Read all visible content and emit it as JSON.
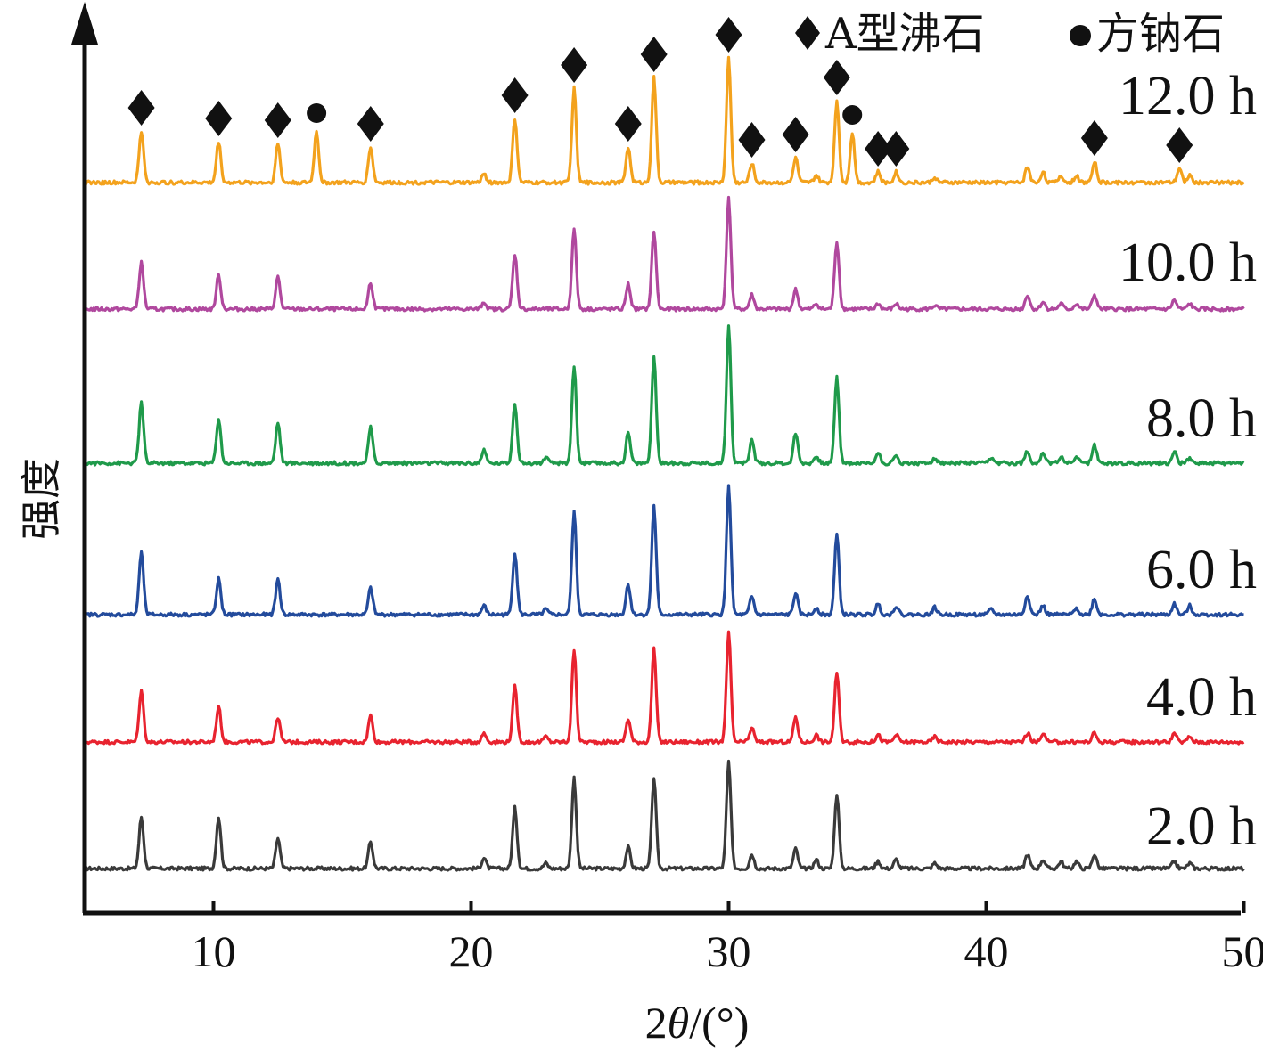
{
  "chart_data": {
    "type": "line",
    "title": "",
    "xlabel": "2θ/(°)",
    "ylabel": "强度",
    "xlim": [
      5,
      50
    ],
    "xticks": [
      10,
      20,
      30,
      40,
      50
    ],
    "grid": false,
    "legend": [
      {
        "marker": "diamond",
        "label": "A型沸石"
      },
      {
        "marker": "circle",
        "label": "方钠石"
      }
    ],
    "zeolite_a_peaks": [
      7.2,
      10.2,
      12.5,
      16.1,
      21.7,
      24.0,
      26.1,
      27.1,
      30.0,
      30.9,
      32.6,
      34.2,
      35.8,
      36.5,
      44.2,
      47.5
    ],
    "sodalite_peaks": [
      14.0,
      34.8
    ],
    "series": [
      {
        "name": "2.0 h",
        "label": "2.0 h",
        "color": "#3a3a3a",
        "peaks": [
          [
            7.2,
            58
          ],
          [
            10.2,
            58
          ],
          [
            12.5,
            34
          ],
          [
            16.1,
            30
          ],
          [
            20.5,
            12
          ],
          [
            21.7,
            68
          ],
          [
            22.9,
            6
          ],
          [
            24.0,
            102
          ],
          [
            26.1,
            24
          ],
          [
            27.1,
            102
          ],
          [
            30.0,
            120
          ],
          [
            30.9,
            16
          ],
          [
            32.6,
            22
          ],
          [
            33.4,
            10
          ],
          [
            34.2,
            84
          ],
          [
            35.8,
            8
          ],
          [
            36.5,
            10
          ],
          [
            38.0,
            6
          ],
          [
            41.6,
            16
          ],
          [
            42.2,
            10
          ],
          [
            42.9,
            8
          ],
          [
            43.5,
            8
          ],
          [
            44.2,
            16
          ],
          [
            47.3,
            8
          ],
          [
            47.9,
            6
          ]
        ]
      },
      {
        "name": "4.0 h",
        "label": "4.0 h",
        "color": "#e8232f",
        "peaks": [
          [
            7.2,
            58
          ],
          [
            10.2,
            40
          ],
          [
            12.5,
            28
          ],
          [
            16.1,
            30
          ],
          [
            20.5,
            10
          ],
          [
            21.7,
            62
          ],
          [
            22.9,
            6
          ],
          [
            24.0,
            104
          ],
          [
            26.1,
            26
          ],
          [
            27.1,
            104
          ],
          [
            30.0,
            124
          ],
          [
            30.9,
            16
          ],
          [
            32.6,
            28
          ],
          [
            33.4,
            8
          ],
          [
            34.2,
            78
          ],
          [
            35.8,
            8
          ],
          [
            36.5,
            8
          ],
          [
            38.0,
            6
          ],
          [
            41.6,
            10
          ],
          [
            42.2,
            10
          ],
          [
            44.2,
            10
          ],
          [
            47.3,
            10
          ],
          [
            47.9,
            6
          ]
        ]
      },
      {
        "name": "6.0 h",
        "label": "6.0 h",
        "color": "#234b9c",
        "peaks": [
          [
            7.2,
            70
          ],
          [
            10.2,
            40
          ],
          [
            12.5,
            40
          ],
          [
            16.1,
            30
          ],
          [
            20.5,
            10
          ],
          [
            21.7,
            70
          ],
          [
            22.9,
            6
          ],
          [
            24.0,
            116
          ],
          [
            26.1,
            34
          ],
          [
            27.1,
            122
          ],
          [
            30.0,
            146
          ],
          [
            30.9,
            20
          ],
          [
            32.6,
            24
          ],
          [
            33.4,
            8
          ],
          [
            34.2,
            90
          ],
          [
            35.8,
            12
          ],
          [
            36.5,
            10
          ],
          [
            38.0,
            8
          ],
          [
            40.2,
            6
          ],
          [
            41.6,
            22
          ],
          [
            42.2,
            10
          ],
          [
            43.5,
            8
          ],
          [
            44.2,
            18
          ],
          [
            47.3,
            12
          ],
          [
            47.9,
            10
          ]
        ]
      },
      {
        "name": "8.0 h",
        "label": "8.0 h",
        "color": "#1f9a4a",
        "peaks": [
          [
            7.2,
            68
          ],
          [
            10.2,
            50
          ],
          [
            12.5,
            46
          ],
          [
            16.1,
            40
          ],
          [
            20.5,
            14
          ],
          [
            21.7,
            68
          ],
          [
            22.9,
            6
          ],
          [
            24.0,
            110
          ],
          [
            26.1,
            34
          ],
          [
            27.1,
            120
          ],
          [
            30.0,
            156
          ],
          [
            30.9,
            26
          ],
          [
            32.6,
            34
          ],
          [
            33.4,
            8
          ],
          [
            34.2,
            96
          ],
          [
            35.8,
            12
          ],
          [
            36.5,
            8
          ],
          [
            38.0,
            6
          ],
          [
            40.2,
            6
          ],
          [
            41.6,
            14
          ],
          [
            42.2,
            12
          ],
          [
            42.9,
            8
          ],
          [
            43.5,
            8
          ],
          [
            44.2,
            20
          ],
          [
            47.3,
            14
          ],
          [
            47.9,
            6
          ]
        ]
      },
      {
        "name": "10.0 h",
        "label": "10.0 h",
        "color": "#b0489e",
        "peaks": [
          [
            7.2,
            52
          ],
          [
            10.2,
            38
          ],
          [
            12.5,
            36
          ],
          [
            16.1,
            30
          ],
          [
            20.5,
            8
          ],
          [
            21.7,
            62
          ],
          [
            24.0,
            90
          ],
          [
            26.1,
            28
          ],
          [
            27.1,
            88
          ],
          [
            30.0,
            124
          ],
          [
            30.9,
            16
          ],
          [
            32.6,
            22
          ],
          [
            33.4,
            6
          ],
          [
            34.2,
            76
          ],
          [
            35.8,
            6
          ],
          [
            36.5,
            6
          ],
          [
            38.0,
            4
          ],
          [
            41.6,
            16
          ],
          [
            42.2,
            8
          ],
          [
            42.9,
            6
          ],
          [
            43.5,
            6
          ],
          [
            44.2,
            16
          ],
          [
            47.3,
            10
          ],
          [
            47.9,
            6
          ]
        ]
      },
      {
        "name": "12.0 h",
        "label": "12.0 h",
        "color": "#f3a21d",
        "peaks": [
          [
            7.2,
            58
          ],
          [
            10.2,
            46
          ],
          [
            12.5,
            44
          ],
          [
            14.0,
            58
          ],
          [
            16.1,
            40
          ],
          [
            20.5,
            10
          ],
          [
            21.7,
            72
          ],
          [
            24.0,
            106
          ],
          [
            26.1,
            40
          ],
          [
            27.1,
            118
          ],
          [
            30.0,
            140
          ],
          [
            30.9,
            22
          ],
          [
            32.6,
            28
          ],
          [
            33.4,
            8
          ],
          [
            34.2,
            92
          ],
          [
            34.8,
            56
          ],
          [
            35.8,
            12
          ],
          [
            36.5,
            12
          ],
          [
            38.0,
            6
          ],
          [
            41.6,
            18
          ],
          [
            42.2,
            12
          ],
          [
            42.9,
            8
          ],
          [
            43.5,
            8
          ],
          [
            44.2,
            24
          ],
          [
            47.5,
            16
          ],
          [
            47.9,
            8
          ]
        ]
      }
    ]
  }
}
